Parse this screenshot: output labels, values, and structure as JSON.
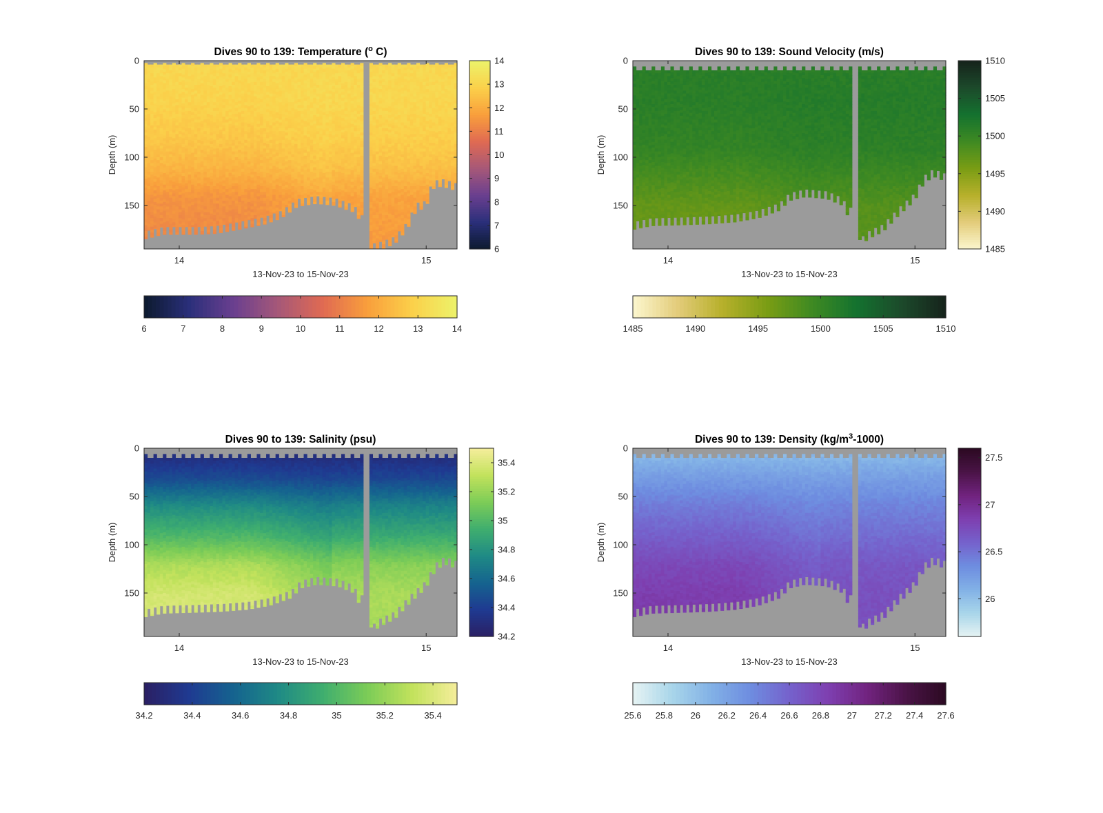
{
  "figure": {
    "background": "#ffffff",
    "missing_color": "#9b9b9b"
  },
  "chart_data": [
    {
      "type": "heatmap",
      "title": "Dives 90 to 139: Temperature (",
      "title_sup": "o",
      "title_end": " C)",
      "xlabel": "13-Nov-23 to 15-Nov-23",
      "ylabel": "Depth (m)",
      "xlim": [
        "13-Nov-23 20:35",
        "15-Nov-23 03:00"
      ],
      "xticks": [
        {
          "value": "14-Nov-23",
          "label": "14"
        },
        {
          "value": "15-Nov-23",
          "label": "15"
        }
      ],
      "ylim": [
        0,
        195
      ],
      "y_reversed": true,
      "yticks": [
        0,
        50,
        100,
        150
      ],
      "colorbar": {
        "min": 6,
        "max": 14,
        "ticks": [
          6,
          7,
          8,
          9,
          10,
          11,
          12,
          13,
          14
        ],
        "colormap": [
          "#0c1a2e",
          "#2a2f7a",
          "#6a3f8f",
          "#a65878",
          "#e06a52",
          "#f99f3c",
          "#fbd04a",
          "#ecf36a"
        ]
      },
      "horizontal_colorbar_ticks": [
        6,
        7,
        8,
        9,
        10,
        11,
        12,
        13,
        14
      ],
      "bottom_depth_profile": {
        "x_fraction": [
          0,
          0.06,
          0.17,
          0.23,
          0.3,
          0.38,
          0.44,
          0.49,
          0.55,
          0.61,
          0.67,
          0.7,
          0.72,
          0.76,
          0.8,
          0.84,
          0.87,
          0.9,
          0.92,
          0.95,
          1
        ],
        "depth_m": [
          180,
          175,
          175,
          174,
          170,
          165,
          158,
          146,
          143,
          145,
          152,
          165,
          193,
          190,
          185,
          170,
          150,
          148,
          128,
          125,
          130
        ]
      },
      "surface_gap_depth_m": 4,
      "data_gap": {
        "x_fraction_start": 0.7,
        "x_fraction_end": 0.72
      },
      "value_profile": {
        "depth_m": [
          0,
          40,
          80,
          110,
          140,
          195
        ],
        "value": [
          13.1,
          13.0,
          12.7,
          12.3,
          11.6,
          11.3
        ]
      },
      "trend": {
        "early": -0.15,
        "late": 0.3,
        "mid": 0.55,
        "x_fraction_early_end": 0.35,
        "x_fraction_mid": 0.6
      }
    },
    {
      "type": "heatmap",
      "title": "Dives 90 to 139: Sound Velocity (m/s)",
      "title_sup": "",
      "title_end": "",
      "xlabel": "13-Nov-23 to 15-Nov-23",
      "ylabel": "Depth (m)",
      "xlim": [
        "13-Nov-23 20:35",
        "15-Nov-23 03:00"
      ],
      "xticks": [
        {
          "value": "14-Nov-23",
          "label": "14"
        },
        {
          "value": "15-Nov-23",
          "label": "15"
        }
      ],
      "ylim": [
        0,
        195
      ],
      "y_reversed": true,
      "yticks": [
        0,
        50,
        100,
        150
      ],
      "colorbar": {
        "min": 1485,
        "max": 1510,
        "ticks": [
          1485,
          1490,
          1495,
          1500,
          1505,
          1510
        ],
        "colormap": [
          "#fcf7cf",
          "#e3cc7a",
          "#b7b02b",
          "#7a9d14",
          "#3f8a22",
          "#14722f",
          "#1c4a2b",
          "#16231b"
        ]
      },
      "horizontal_colorbar_ticks": [
        1485,
        1490,
        1495,
        1500,
        1505,
        1510
      ],
      "bottom_depth_profile": {
        "x_fraction": [
          0,
          0.06,
          0.17,
          0.25,
          0.33,
          0.4,
          0.47,
          0.5,
          0.55,
          0.62,
          0.67,
          0.69,
          0.7,
          0.73,
          0.75,
          0.8,
          0.85,
          0.9,
          0.93,
          0.96,
          1
        ],
        "depth_m": [
          170,
          166,
          165,
          164,
          162,
          158,
          150,
          140,
          136,
          138,
          145,
          158,
          152,
          186,
          180,
          172,
          155,
          140,
          122,
          115,
          120
        ]
      },
      "surface_gap_depth_m": 10,
      "data_gap": {
        "x_fraction_start": 0.7,
        "x_fraction_end": 0.72
      },
      "value_profile": {
        "depth_m": [
          0,
          40,
          90,
          120,
          150,
          195
        ],
        "value": [
          1501.0,
          1501.2,
          1500.5,
          1499.0,
          1497.5,
          1497.0
        ]
      },
      "trend": {
        "early": -0.6,
        "late": 0.6,
        "mid": 1.0,
        "x_fraction_early_end": 0.35,
        "x_fraction_mid": 0.6
      }
    },
    {
      "type": "heatmap",
      "title": "Dives 90 to 139: Salinity (psu)",
      "title_sup": "",
      "title_end": "",
      "xlabel": "13-Nov-23 to 15-Nov-23",
      "ylabel": "Depth (m)",
      "xlim": [
        "13-Nov-23 20:35",
        "15-Nov-23 03:00"
      ],
      "xticks": [
        {
          "value": "14-Nov-23",
          "label": "14"
        },
        {
          "value": "15-Nov-23",
          "label": "15"
        }
      ],
      "ylim": [
        0,
        195
      ],
      "y_reversed": true,
      "yticks": [
        0,
        50,
        100,
        150
      ],
      "colorbar": {
        "min": 34.2,
        "max": 35.5,
        "ticks": [
          34.2,
          34.4,
          34.6,
          34.8,
          35,
          35.2,
          35.4
        ],
        "colormap": [
          "#2a1f63",
          "#1f3a91",
          "#15638f",
          "#1f8a85",
          "#3fae6f",
          "#7ccc57",
          "#c2e25c",
          "#f5ee9b"
        ]
      },
      "horizontal_colorbar_ticks": [
        34.2,
        34.4,
        34.6,
        34.8,
        35,
        35.2,
        35.4
      ],
      "bottom_depth_profile": {
        "x_fraction": [
          0,
          0.06,
          0.17,
          0.25,
          0.33,
          0.4,
          0.47,
          0.5,
          0.55,
          0.62,
          0.67,
          0.69,
          0.7,
          0.73,
          0.75,
          0.8,
          0.85,
          0.9,
          0.93,
          0.96,
          1
        ],
        "depth_m": [
          170,
          166,
          165,
          164,
          162,
          158,
          150,
          140,
          136,
          138,
          145,
          158,
          152,
          186,
          180,
          172,
          155,
          140,
          122,
          115,
          120
        ]
      },
      "surface_gap_depth_m": 10,
      "data_gap": {
        "x_fraction_start": 0.7,
        "x_fraction_end": 0.72
      },
      "value_profile": {
        "depth_m": [
          0,
          10,
          30,
          60,
          90,
          120,
          150,
          195
        ],
        "value": [
          34.32,
          34.32,
          34.45,
          34.75,
          34.95,
          35.2,
          35.3,
          35.3
        ]
      },
      "trend": {
        "early": 0.1,
        "late": -0.06,
        "mid": -0.16,
        "x_fraction_early_end": 0.35,
        "x_fraction_mid": 0.6
      }
    },
    {
      "type": "heatmap",
      "title": "Dives 90 to 139: Density (kg/m",
      "title_sup": "3",
      "title_end": "-1000)",
      "xlabel": "13-Nov-23 to 15-Nov-23",
      "ylabel": "Depth (m)",
      "xlim": [
        "13-Nov-23 20:35",
        "15-Nov-23 03:00"
      ],
      "xticks": [
        {
          "value": "14-Nov-23",
          "label": "14"
        },
        {
          "value": "15-Nov-23",
          "label": "15"
        }
      ],
      "ylim": [
        0,
        195
      ],
      "y_reversed": true,
      "yticks": [
        0,
        50,
        100,
        150
      ],
      "colorbar": {
        "min": 25.6,
        "max": 27.6,
        "ticks": [
          25.6,
          25.8,
          26,
          26.2,
          26.4,
          26.6,
          26.8,
          27,
          27.2,
          27.4,
          27.6
        ],
        "vertical_ticks": [
          26,
          26.5,
          27,
          27.5
        ],
        "colormap": [
          "#e6f3f3",
          "#a9d6ea",
          "#82b1e6",
          "#6e8de0",
          "#7562cc",
          "#7e3fb0",
          "#71237f",
          "#4a1346",
          "#2b0a22"
        ]
      },
      "horizontal_colorbar_ticks": [
        25.6,
        25.8,
        26,
        26.2,
        26.4,
        26.6,
        26.8,
        27,
        27.2,
        27.4,
        27.6
      ],
      "bottom_depth_profile": {
        "x_fraction": [
          0,
          0.06,
          0.17,
          0.25,
          0.33,
          0.4,
          0.47,
          0.5,
          0.55,
          0.62,
          0.67,
          0.69,
          0.7,
          0.73,
          0.75,
          0.8,
          0.85,
          0.9,
          0.93,
          0.96,
          1
        ],
        "depth_m": [
          170,
          166,
          165,
          164,
          162,
          158,
          150,
          140,
          136,
          138,
          145,
          158,
          152,
          186,
          180,
          172,
          155,
          140,
          122,
          115,
          120
        ]
      },
      "surface_gap_depth_m": 10,
      "data_gap": {
        "x_fraction_start": 0.7,
        "x_fraction_end": 0.72
      },
      "value_profile": {
        "depth_m": [
          0,
          10,
          30,
          60,
          90,
          120,
          150,
          195
        ],
        "value": [
          26.05,
          26.08,
          26.25,
          26.45,
          26.6,
          26.75,
          26.82,
          26.85
        ]
      },
      "trend": {
        "early": 0.05,
        "late": -0.12,
        "mid": -0.2,
        "x_fraction_early_end": 0.35,
        "x_fraction_mid": 0.6
      }
    }
  ]
}
